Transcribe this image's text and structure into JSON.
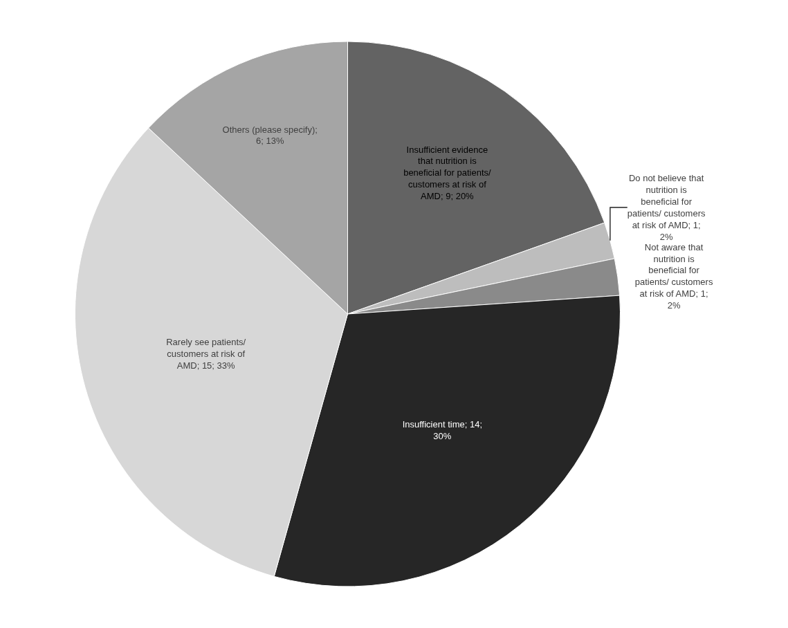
{
  "chart_data": {
    "type": "pie",
    "categories": [
      "Insufficient evidence that nutrition is beneficial for patients/ customers at risk of AMD; 9; 20%",
      "Do not believe that nutrition is beneficial for patients/ customers at risk of AMD; 1; 2%",
      "Not aware that nutrition is beneficial for patients/ customers at risk of AMD; 1; 2%",
      "Insufficient time; 14; 30%",
      "Rarely see patients/ customers at risk of AMD; 15; 33%",
      "Others (please specify); 6; 13%"
    ],
    "values": [
      9,
      1,
      1,
      14,
      15,
      6
    ],
    "colors": [
      "#636363",
      "#bdbdbd",
      "#8a8a8a",
      "#262626",
      "#d7d7d7",
      "#a5a5a5"
    ],
    "legend": false
  }
}
